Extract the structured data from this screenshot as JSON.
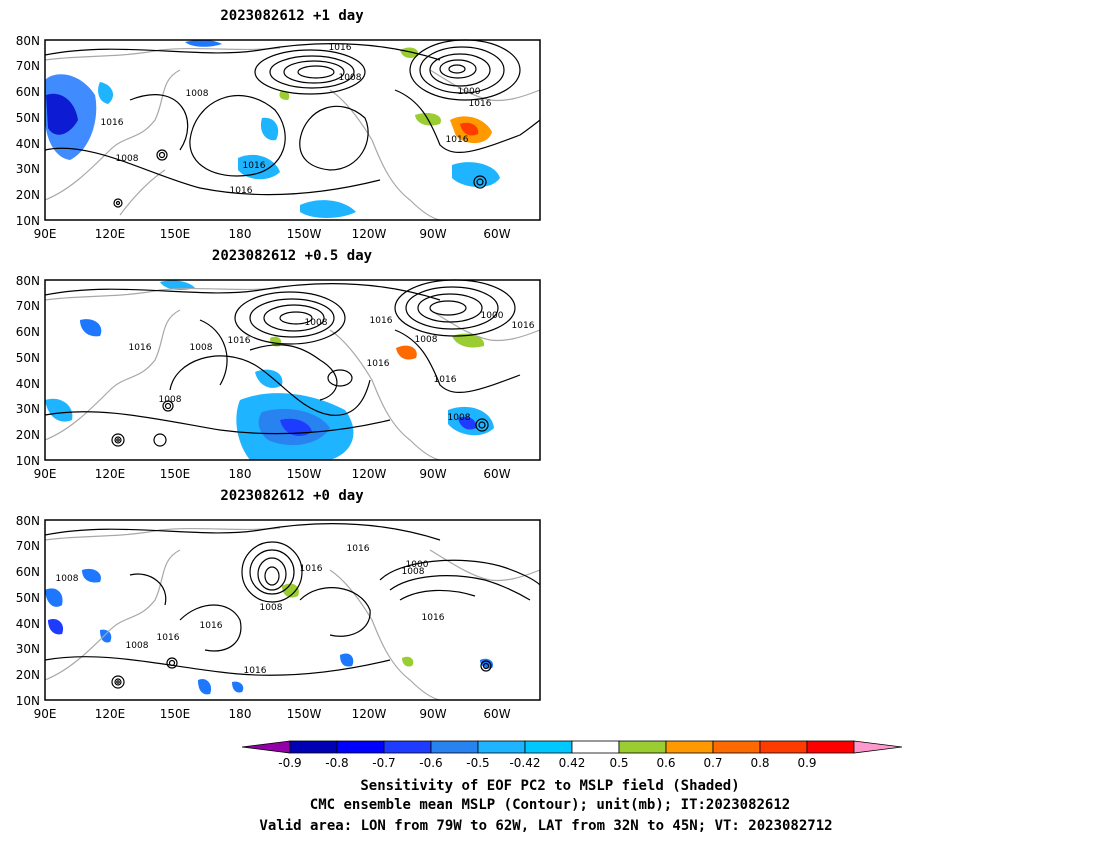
{
  "panels": [
    {
      "title": "2023082612 +1 day",
      "contour_labels": [
        "1016",
        "1008",
        "1008",
        "1016",
        "1008",
        "1016",
        "1016",
        "1000",
        "1016",
        "1016"
      ],
      "lat_ticks": [
        "80N",
        "70N",
        "60N",
        "50N",
        "40N",
        "30N",
        "20N",
        "10N"
      ],
      "lon_ticks": [
        "90E",
        "120E",
        "150E",
        "180",
        "150W",
        "120W",
        "90W",
        "60W"
      ]
    },
    {
      "title": "2023082612 +0.5 day",
      "contour_labels": [
        "1016",
        "1008",
        "1016",
        "1008",
        "1016",
        "1016",
        "1008",
        "1000",
        "1016",
        "1016",
        "1008",
        "1008"
      ],
      "lat_ticks": [
        "80N",
        "70N",
        "60N",
        "50N",
        "40N",
        "30N",
        "20N",
        "10N"
      ],
      "lon_ticks": [
        "90E",
        "120E",
        "150E",
        "180",
        "150W",
        "120W",
        "90W",
        "60W"
      ]
    },
    {
      "title": "2023082612 +0 day",
      "contour_labels": [
        "1008",
        "1016",
        "1016",
        "1008",
        "1016",
        "1000",
        "1008",
        "1016",
        "1016",
        "1008",
        "1016"
      ],
      "lat_ticks": [
        "80N",
        "70N",
        "60N",
        "50N",
        "40N",
        "30N",
        "20N",
        "10N"
      ],
      "lon_ticks": [
        "90E",
        "120E",
        "150E",
        "180",
        "150W",
        "120W",
        "90W",
        "60W"
      ]
    }
  ],
  "colorbar": {
    "labels": [
      "-0.9",
      "-0.8",
      "-0.7",
      "-0.6",
      "-0.5",
      "-0.42",
      "0.42",
      "0.5",
      "0.6",
      "0.7",
      "0.8",
      "0.9"
    ],
    "colors": [
      "#9400a8",
      "#0000b4",
      "#0000ff",
      "#1e3cff",
      "#2882f0",
      "#1eb4ff",
      "#00c8ff",
      "#ffffff",
      "#9acd32",
      "#ff9900",
      "#ff6a00",
      "#ff3c00",
      "#ff0000",
      "#ff99cc"
    ]
  },
  "caption": {
    "line1": "Sensitivity of EOF PC2 to MSLP field (Shaded)",
    "line2": "CMC ensemble mean MSLP (Contour); unit(mb); IT:2023082612",
    "line3": "Valid area: LON from 79W to 62W, LAT from 32N to 45N; VT: 2023082712"
  }
}
